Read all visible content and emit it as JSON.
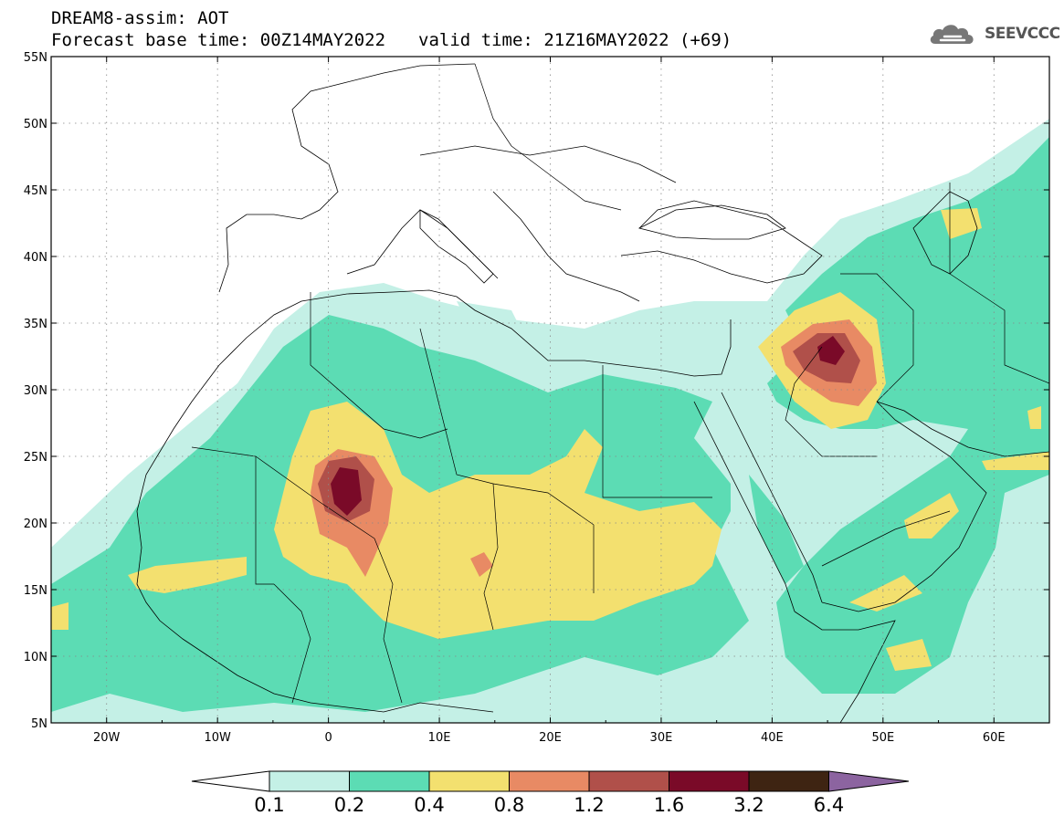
{
  "header": {
    "title_line1": "DREAM8-assim: AOT",
    "title_base": "Forecast base time: 00Z14MAY2022",
    "title_valid": "valid time: 21Z16MAY2022 (+69)",
    "logo_text": "SEEVCCC"
  },
  "map": {
    "lon_range": [
      -25,
      65
    ],
    "lat_range": [
      5,
      55
    ],
    "lat_labels": [
      "55N",
      "50N",
      "45N",
      "40N",
      "35N",
      "30N",
      "25N",
      "20N",
      "15N",
      "10N",
      "5N"
    ],
    "lon_labels": [
      "20W",
      "10W",
      "0",
      "10E",
      "20E",
      "30E",
      "40E",
      "50E",
      "60E"
    ],
    "grid": "dotted",
    "background": "#ffffff"
  },
  "colorbar": {
    "labels": [
      "0.1",
      "0.2",
      "0.4",
      "0.8",
      "1.2",
      "1.6",
      "3.2",
      "6.4"
    ],
    "colors": [
      "#c4f0e6",
      "#5cdcb4",
      "#f3e06f",
      "#e88a64",
      "#b0504a",
      "#7a0a28",
      "#3e2412",
      "#8c64a0"
    ]
  }
}
